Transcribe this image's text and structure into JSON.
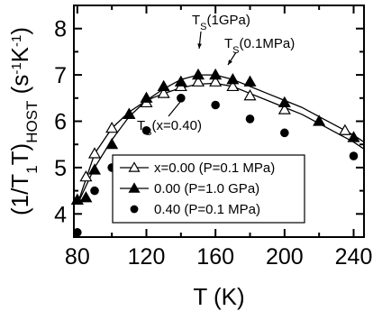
{
  "chart_data": {
    "type": "scatter",
    "xlabel": "T (K)",
    "ylabel": "(1/T1T)HOST (s-1K-1)",
    "xlim": [
      78,
      246
    ],
    "ylim": [
      3.5,
      8.5
    ],
    "xticks": [
      "80",
      "120",
      "160",
      "200",
      "240"
    ],
    "yticks": [
      "4",
      "5",
      "6",
      "7",
      "8"
    ],
    "series": [
      {
        "name": "x=0.00 (P=0.1 MPa)",
        "marker": "open-triangle",
        "color": "#000000",
        "points": [
          [
            80,
            4.3
          ],
          [
            85,
            4.8
          ],
          [
            90,
            5.3
          ],
          [
            100,
            5.85
          ],
          [
            110,
            6.15
          ],
          [
            120,
            6.4
          ],
          [
            130,
            6.6
          ],
          [
            140,
            6.75
          ],
          [
            150,
            6.85
          ],
          [
            160,
            6.85
          ],
          [
            170,
            6.75
          ],
          [
            180,
            6.55
          ],
          [
            200,
            6.25
          ],
          [
            235,
            5.8
          ]
        ]
      },
      {
        "name": "0.00 (P=1.0 GPa)",
        "marker": "filled-triangle",
        "color": "#000000",
        "points": [
          [
            80,
            4.3
          ],
          [
            85,
            4.35
          ],
          [
            90,
            4.95
          ],
          [
            100,
            5.5
          ],
          [
            110,
            6.15
          ],
          [
            120,
            6.5
          ],
          [
            130,
            6.75
          ],
          [
            140,
            6.85
          ],
          [
            150,
            7.0
          ],
          [
            160,
            7.0
          ],
          [
            170,
            6.9
          ],
          [
            180,
            6.85
          ],
          [
            200,
            6.4
          ],
          [
            220,
            6.0
          ],
          [
            240,
            5.65
          ]
        ]
      },
      {
        "name": "0.40 (P=0.1 MPa)",
        "marker": "filled-circle",
        "color": "#000000",
        "points": [
          [
            80,
            3.6
          ],
          [
            90,
            4.5
          ],
          [
            100,
            5.0
          ],
          [
            120,
            5.8
          ],
          [
            140,
            6.5
          ],
          [
            160,
            6.35
          ],
          [
            180,
            6.05
          ],
          [
            200,
            5.75
          ],
          [
            240,
            5.25
          ]
        ]
      }
    ],
    "fit_curves": [
      {
        "label": "TS(1GPa)",
        "points": [
          [
            80,
            4.2
          ],
          [
            90,
            5.0
          ],
          [
            100,
            5.6
          ],
          [
            110,
            6.1
          ],
          [
            120,
            6.45
          ],
          [
            130,
            6.7
          ],
          [
            140,
            6.9
          ],
          [
            150,
            7.0
          ],
          [
            160,
            7.0
          ],
          [
            170,
            6.9
          ],
          [
            180,
            6.75
          ],
          [
            190,
            6.6
          ],
          [
            200,
            6.45
          ],
          [
            210,
            6.3
          ],
          [
            220,
            6.1
          ],
          [
            230,
            5.9
          ],
          [
            240,
            5.7
          ],
          [
            246,
            5.55
          ]
        ]
      },
      {
        "label": "TS(0.1MPa)",
        "points": [
          [
            80,
            4.2
          ],
          [
            90,
            5.3
          ],
          [
            100,
            5.85
          ],
          [
            110,
            6.2
          ],
          [
            120,
            6.45
          ],
          [
            130,
            6.6
          ],
          [
            140,
            6.72
          ],
          [
            150,
            6.8
          ],
          [
            160,
            6.82
          ],
          [
            170,
            6.75
          ],
          [
            180,
            6.6
          ],
          [
            190,
            6.45
          ],
          [
            200,
            6.3
          ],
          [
            210,
            6.15
          ],
          [
            220,
            5.95
          ],
          [
            230,
            5.75
          ],
          [
            240,
            5.55
          ],
          [
            246,
            5.4
          ]
        ]
      }
    ],
    "annotations": [
      {
        "text": "TS(1GPa)",
        "main": "T",
        "sub": "S",
        "rest": "(1GPa)",
        "at": [
          150,
          7.0
        ]
      },
      {
        "text": "TS(0.1MPa)",
        "main": "T",
        "sub": "S",
        "rest": "(0.1MPa)",
        "at": [
          163,
          6.82
        ]
      },
      {
        "text": "TS(x=0.40)",
        "main": "T",
        "sub": "S",
        "rest": "(x=0.40)",
        "at": [
          140,
          6.5
        ]
      }
    ],
    "legend": {
      "placement": "lower-right",
      "entries": [
        {
          "marker": "open-triangle",
          "text": "x=0.00 (P=0.1 MPa)"
        },
        {
          "marker": "filled-triangle",
          "text": "0.00 (P=1.0 GPa)"
        },
        {
          "marker": "filled-circle",
          "text": "0.40 (P=0.1 MPa)"
        }
      ]
    }
  }
}
